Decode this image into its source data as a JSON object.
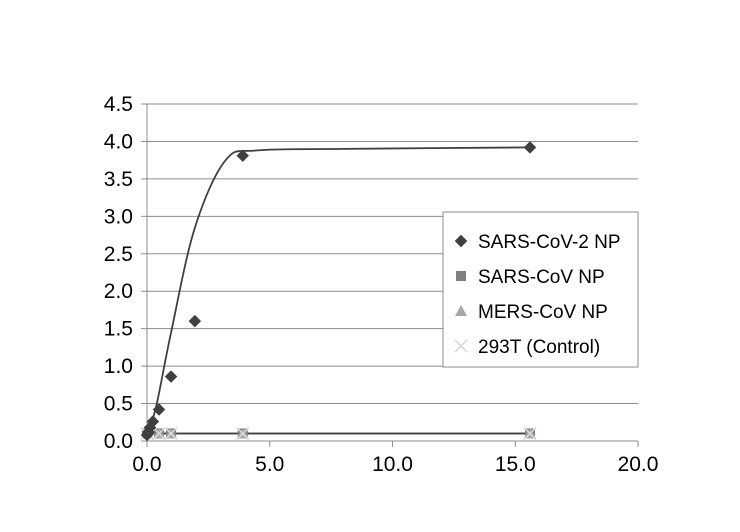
{
  "chart_data": {
    "type": "scatter",
    "xlim": [
      0,
      20
    ],
    "ylim": [
      0,
      4.5
    ],
    "x_ticks": [
      "0.0",
      "5.0",
      "10.0",
      "15.0",
      "20.0"
    ],
    "y_ticks": [
      "0.0",
      "0.5",
      "1.0",
      "1.5",
      "2.0",
      "2.5",
      "3.0",
      "3.5",
      "4.0",
      "4.5"
    ],
    "grid": "horizontal",
    "legend_position": "right",
    "series": [
      {
        "name": "SARS-CoV-2 NP",
        "marker": "diamond",
        "color": "#404040",
        "trendline": true,
        "points": [
          [
            0.0,
            0.08
          ],
          [
            0.06,
            0.12
          ],
          [
            0.12,
            0.18
          ],
          [
            0.24,
            0.26
          ],
          [
            0.49,
            0.42
          ],
          [
            0.98,
            0.86
          ],
          [
            1.95,
            1.6
          ],
          [
            3.9,
            3.81
          ],
          [
            15.6,
            3.92
          ]
        ]
      },
      {
        "name": "SARS-CoV NP",
        "marker": "square",
        "color": "#808080",
        "trendline": true,
        "points": [
          [
            0.0,
            0.1
          ],
          [
            0.49,
            0.1
          ],
          [
            0.98,
            0.1
          ],
          [
            3.9,
            0.1
          ],
          [
            15.6,
            0.1
          ]
        ]
      },
      {
        "name": "MERS-CoV NP",
        "marker": "triangle",
        "color": "#a6a6a6",
        "trendline": true,
        "points": [
          [
            0.0,
            0.1
          ],
          [
            0.49,
            0.1
          ],
          [
            0.98,
            0.1
          ],
          [
            3.9,
            0.1
          ],
          [
            15.6,
            0.1
          ]
        ]
      },
      {
        "name": "293T (Control)",
        "marker": "cross",
        "color": "#d9d9d9",
        "trendline": true,
        "points": [
          [
            0.0,
            0.1
          ],
          [
            0.49,
            0.1
          ],
          [
            0.98,
            0.1
          ],
          [
            3.9,
            0.1
          ],
          [
            15.6,
            0.1
          ]
        ]
      }
    ],
    "main_curve": [
      [
        0.0,
        0.05
      ],
      [
        0.4,
        0.5
      ],
      [
        0.98,
        1.45
      ],
      [
        1.95,
        2.85
      ],
      [
        3.2,
        3.75
      ],
      [
        4.5,
        3.88
      ],
      [
        8.0,
        3.9
      ],
      [
        15.6,
        3.92
      ]
    ]
  }
}
